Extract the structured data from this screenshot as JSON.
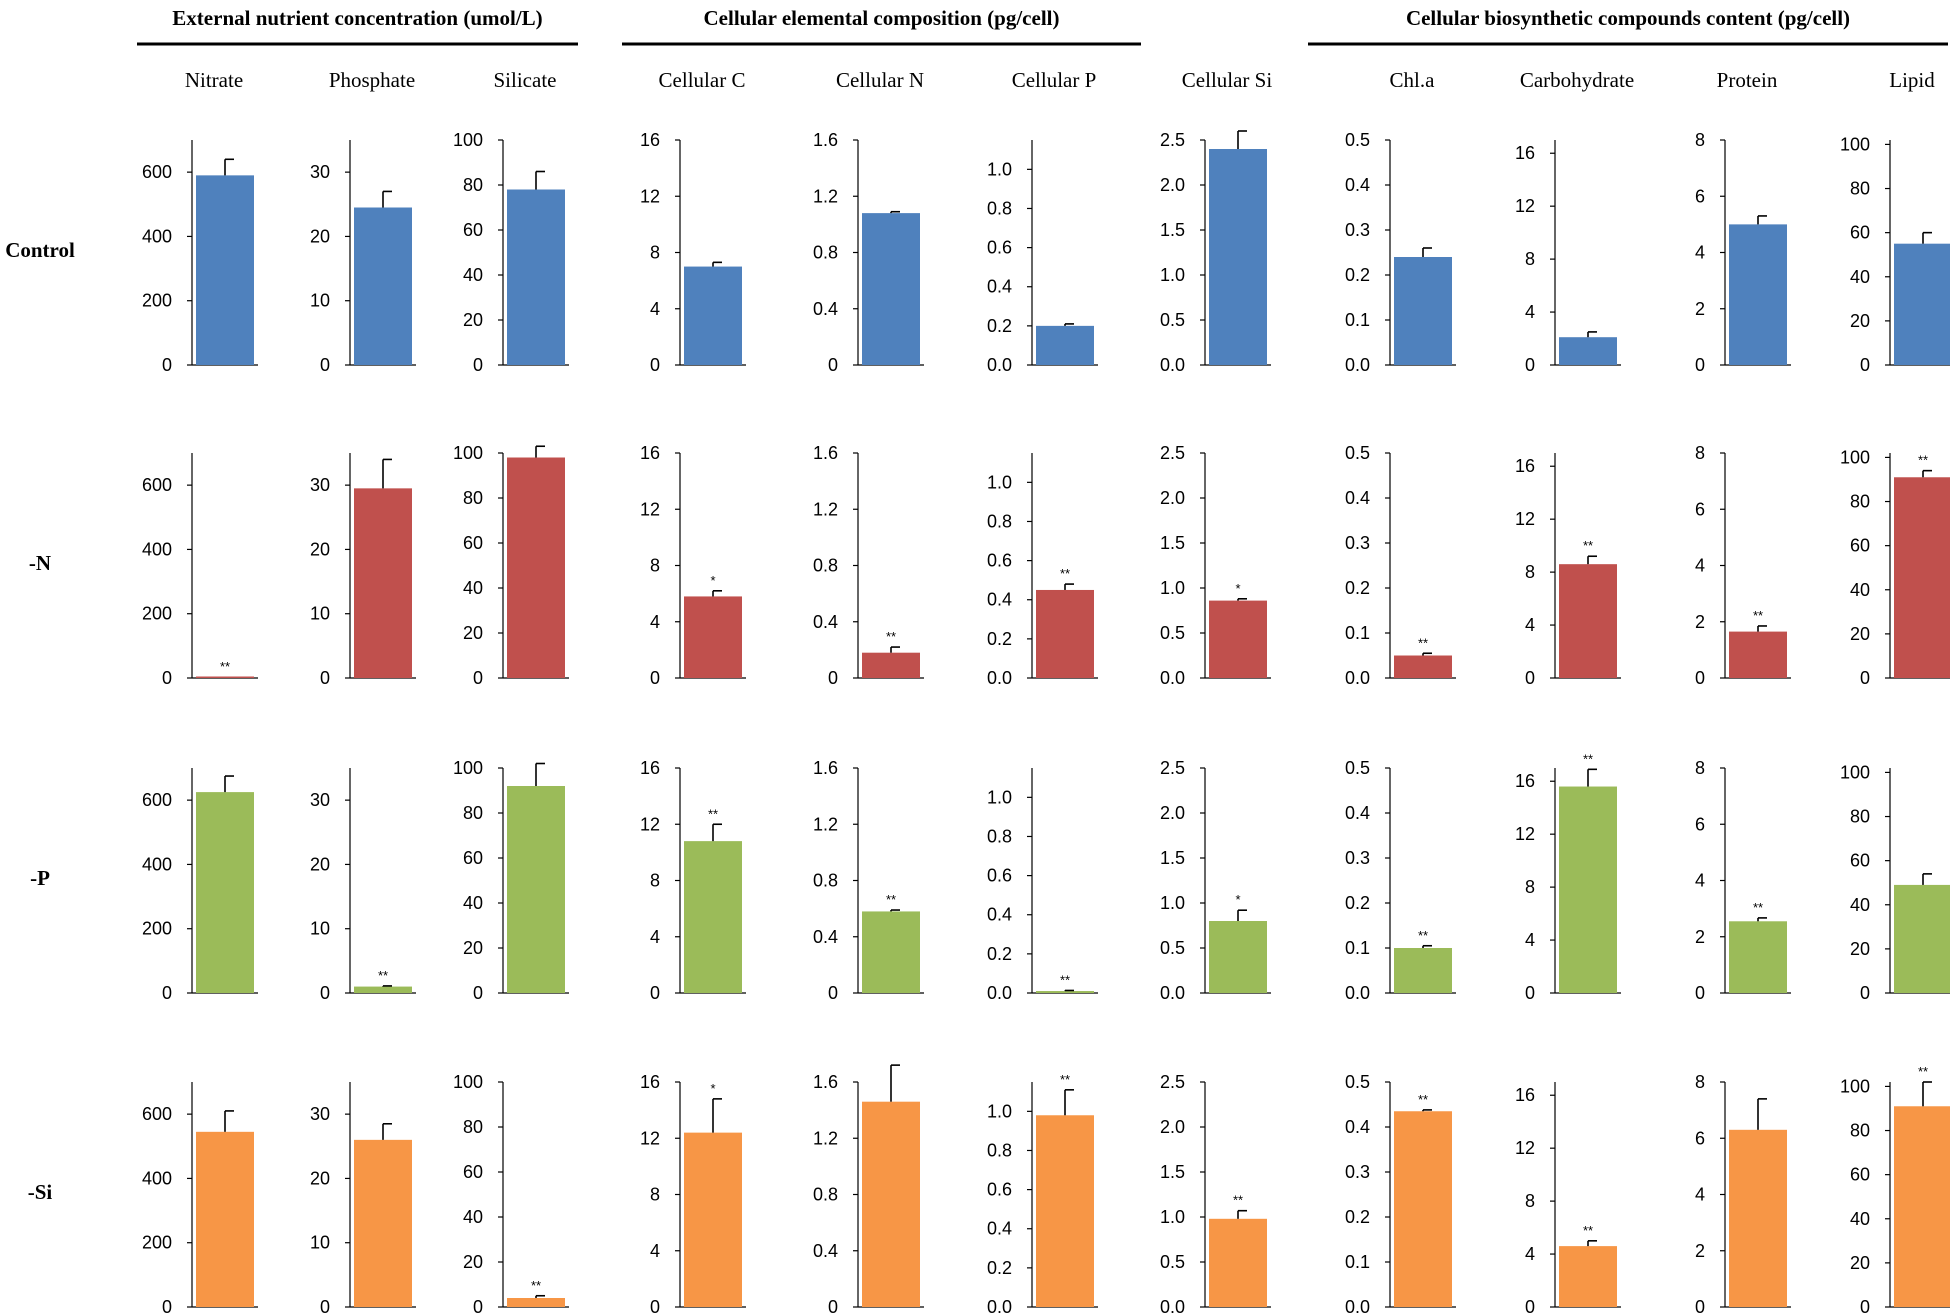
{
  "chart_data": {
    "type": "bar",
    "groups": [
      {
        "title": "External nutrient concentration (umol/L)",
        "columns": [
          0,
          1,
          2
        ]
      },
      {
        "title": "Cellular elemental composition (pg/cell)",
        "columns": [
          3,
          4,
          5,
          6
        ]
      },
      {
        "title": "Cellular biosynthetic compounds content (pg/cell)",
        "columns": [
          7,
          8,
          9,
          10
        ]
      }
    ],
    "columns": [
      {
        "name": "Nitrate",
        "ylim": [
          0,
          700
        ],
        "ticks": [
          "0",
          "200",
          "400",
          "600"
        ]
      },
      {
        "name": "Phosphate",
        "ylim": [
          0,
          35
        ],
        "ticks": [
          "0",
          "10",
          "20",
          "30"
        ]
      },
      {
        "name": "Silicate",
        "ylim": [
          0,
          100
        ],
        "ticks": [
          "0",
          "20",
          "40",
          "60",
          "80",
          "100"
        ]
      },
      {
        "name": "Cellular C",
        "ylim": [
          0,
          16
        ],
        "ticks": [
          "0",
          "4",
          "8",
          "12",
          "16"
        ]
      },
      {
        "name": "Cellular N",
        "ylim": [
          0,
          1.6
        ],
        "ticks": [
          "0",
          "0.4",
          "0.8",
          "1.2",
          "1.6"
        ]
      },
      {
        "name": "Cellular P",
        "ylim": [
          0,
          1.15
        ],
        "ticks": [
          "0.0",
          "0.2",
          "0.4",
          "0.6",
          "0.8",
          "1.0"
        ]
      },
      {
        "name": "Cellular Si",
        "ylim": [
          0,
          2.5
        ],
        "ticks": [
          "0.0",
          "0.5",
          "1.0",
          "1.5",
          "2.0",
          "2.5"
        ]
      },
      {
        "name": "Chl.a",
        "ylim": [
          0,
          0.5
        ],
        "ticks": [
          "0.0",
          "0.1",
          "0.2",
          "0.3",
          "0.4",
          "0.5"
        ]
      },
      {
        "name": "Carbohydrate",
        "ylim": [
          0,
          17
        ],
        "ticks": [
          "0",
          "4",
          "8",
          "12",
          "16"
        ]
      },
      {
        "name": "Protein",
        "ylim": [
          0,
          8
        ],
        "ticks": [
          "0",
          "2",
          "4",
          "6",
          "8"
        ]
      },
      {
        "name": "Lipid",
        "ylim": [
          0,
          102
        ],
        "ticks": [
          "0",
          "20",
          "40",
          "60",
          "80",
          "100"
        ]
      }
    ],
    "series": [
      {
        "name": "Control",
        "color": "#4f81bd",
        "values": [
          590,
          24.5,
          78,
          7.0,
          1.08,
          0.2,
          2.4,
          0.24,
          2.1,
          5.0,
          55
        ],
        "errors": [
          50,
          2.5,
          8,
          0.3,
          0.01,
          0.01,
          0.2,
          0.02,
          0.4,
          0.3,
          5
        ],
        "sig": [
          "",
          "",
          "",
          "",
          "",
          "",
          "",
          "",
          "",
          "",
          ""
        ]
      },
      {
        "name": "-N",
        "color": "#c0504d",
        "values": [
          3,
          29.5,
          98,
          5.8,
          0.18,
          0.45,
          0.86,
          0.05,
          8.6,
          1.65,
          91
        ],
        "errors": [
          0,
          4.5,
          5,
          0.4,
          0.04,
          0.03,
          0.02,
          0.005,
          0.6,
          0.2,
          3
        ],
        "sig": [
          "**",
          "",
          "",
          "*",
          "**",
          "**",
          "*",
          "**",
          "**",
          "**",
          "**"
        ]
      },
      {
        "name": "-P",
        "color": "#9bbb59",
        "values": [
          625,
          1,
          92,
          10.8,
          0.58,
          0.01,
          0.8,
          0.1,
          15.6,
          2.55,
          49
        ],
        "errors": [
          50,
          0.1,
          10,
          1.2,
          0.01,
          0.003,
          0.12,
          0.005,
          1.3,
          0.12,
          5
        ],
        "sig": [
          "",
          "**",
          "",
          "**",
          "**",
          "**",
          "*",
          "**",
          "**",
          "**",
          ""
        ]
      },
      {
        "name": "-Si",
        "color": "#f79646",
        "values": [
          545,
          26,
          4,
          12.4,
          1.46,
          0.98,
          0.98,
          0.435,
          4.6,
          6.3,
          91
        ],
        "errors": [
          65,
          2.5,
          1,
          2.4,
          0.26,
          0.13,
          0.09,
          0.003,
          0.4,
          1.1,
          11
        ],
        "sig": [
          "",
          "",
          "**",
          "*",
          "",
          "**",
          "**",
          "**",
          "**",
          "",
          "**"
        ]
      }
    ]
  }
}
